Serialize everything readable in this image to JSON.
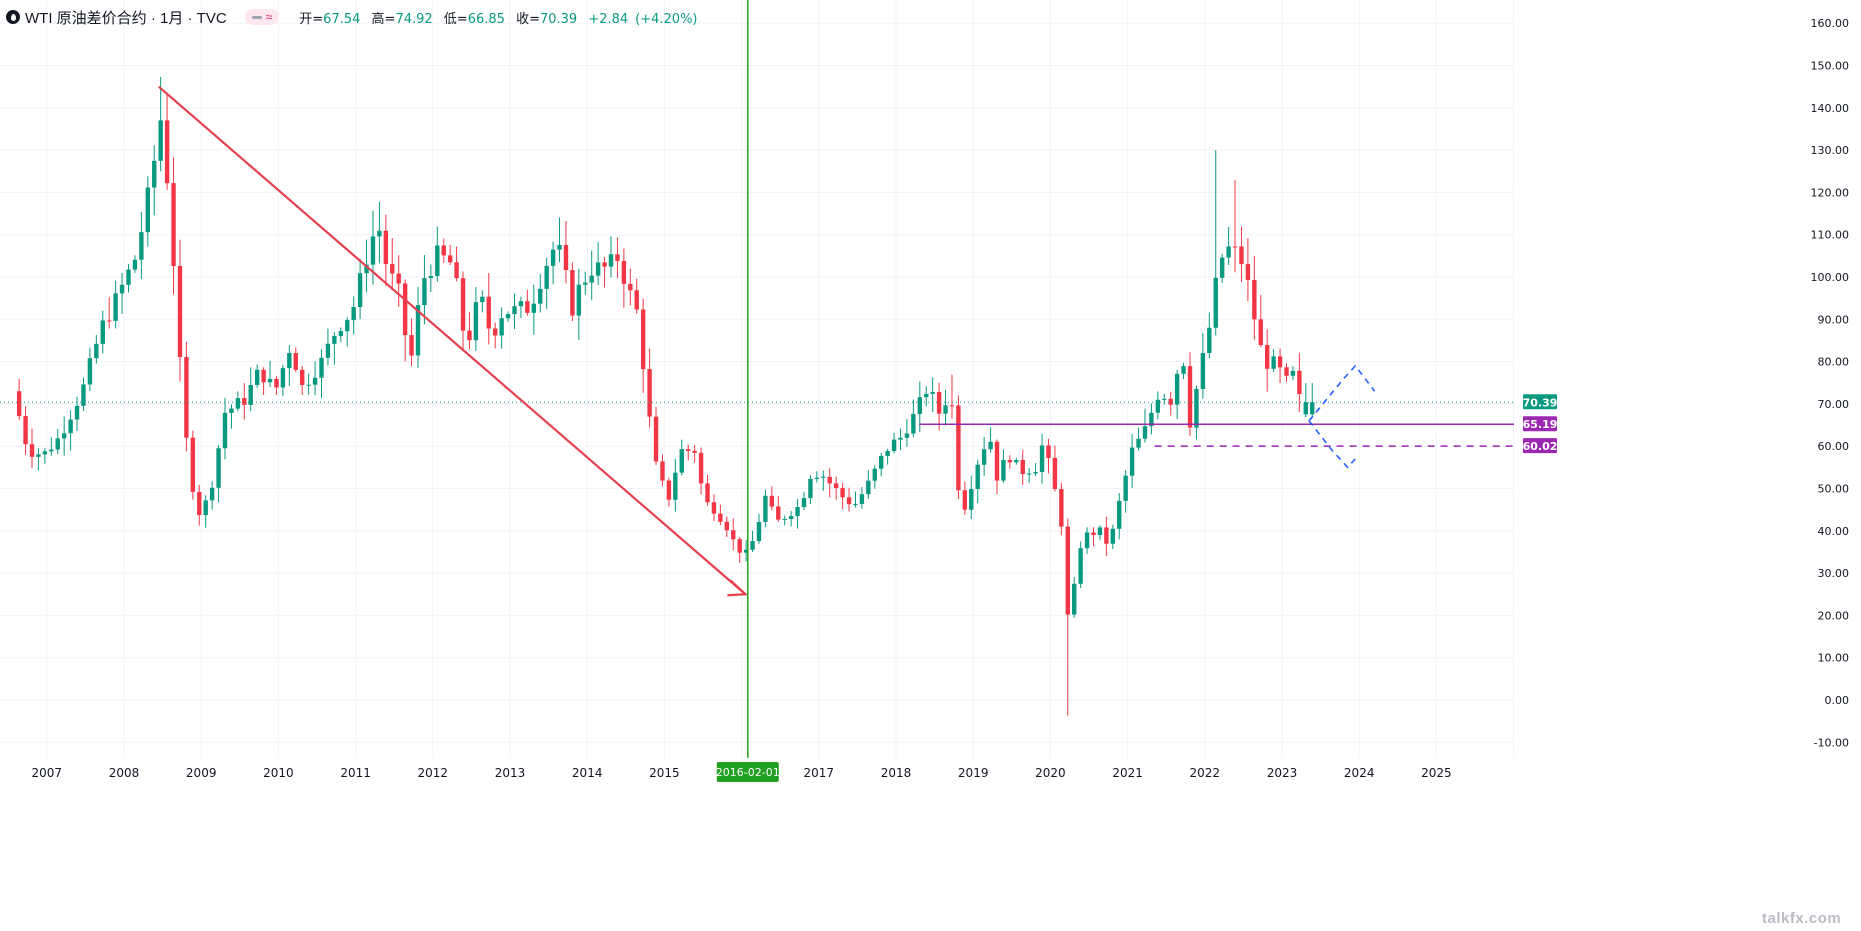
{
  "header": {
    "title": "WTI 原油差价合约 · 1月 · TVC",
    "open_label": "开=",
    "open": "67.54",
    "high_label": "高=",
    "high": "74.92",
    "low_label": "低=",
    "low": "66.85",
    "close_label": "收=",
    "close": "70.39",
    "change": "+2.84",
    "change_pct": "(+4.20%)",
    "pill_glyph": "≈"
  },
  "watermark": "talkfx.com",
  "colors": {
    "up": "#089981",
    "down": "#f23645",
    "trend": "#e5404d",
    "vline": "#22a022",
    "level": "#9c27b0",
    "projection": "#2962ff",
    "last_price": "#089981",
    "grid": "#f0f3fa"
  },
  "chart_data": {
    "type": "candlestick",
    "title": "WTI 原油差价合约 · 1月 · TVC",
    "interval": "monthly",
    "ylim": [
      -10,
      160
    ],
    "xlim": [
      2006.55,
      2026.1
    ],
    "y_ticks": [
      -10,
      0,
      10,
      20,
      30,
      40,
      50,
      60,
      70,
      80,
      90,
      100,
      110,
      120,
      130,
      140,
      150,
      160
    ],
    "y_tick_labels": [
      "-10.00",
      "0.00",
      "10.00",
      "20.00",
      "30.00",
      "40.00",
      "50.00",
      "60.00",
      "70.00",
      "80.00",
      "90.00",
      "100.00",
      "110.00",
      "120.00",
      "130.00",
      "140.00",
      "150.00",
      "160.00"
    ],
    "x_ticks": [
      2007,
      2008,
      2009,
      2010,
      2011,
      2012,
      2013,
      2014,
      2015,
      2017,
      2018,
      2019,
      2020,
      2021,
      2022,
      2023,
      2024,
      2025
    ],
    "x_tick_labels": [
      "2007",
      "2008",
      "2009",
      "2010",
      "2011",
      "2012",
      "2013",
      "2014",
      "2015",
      "2017",
      "2018",
      "2019",
      "2020",
      "2021",
      "2022",
      "2023",
      "2024",
      "2025"
    ],
    "crosshair_date": "2016-02-01",
    "crosshair_x": 2016.08,
    "price_path": [
      [
        2006.6,
        73
      ],
      [
        2006.8,
        59
      ],
      [
        2007.0,
        58
      ],
      [
        2007.2,
        62
      ],
      [
        2007.5,
        73
      ],
      [
        2007.75,
        88
      ],
      [
        2007.95,
        95
      ],
      [
        2008.2,
        105
      ],
      [
        2008.42,
        125
      ],
      [
        2008.5,
        140
      ],
      [
        2008.6,
        124
      ],
      [
        2008.7,
        100
      ],
      [
        2008.8,
        68
      ],
      [
        2008.9,
        54
      ],
      [
        2009.0,
        44
      ],
      [
        2009.15,
        48
      ],
      [
        2009.35,
        68
      ],
      [
        2009.6,
        71
      ],
      [
        2009.8,
        78
      ],
      [
        2010.0,
        73
      ],
      [
        2010.2,
        84
      ],
      [
        2010.35,
        74
      ],
      [
        2010.6,
        80
      ],
      [
        2010.8,
        88
      ],
      [
        2011.0,
        92
      ],
      [
        2011.2,
        106
      ],
      [
        2011.33,
        113
      ],
      [
        2011.45,
        102
      ],
      [
        2011.6,
        96
      ],
      [
        2011.75,
        79
      ],
      [
        2011.9,
        99
      ],
      [
        2012.1,
        105
      ],
      [
        2012.3,
        103
      ],
      [
        2012.45,
        86
      ],
      [
        2012.5,
        85
      ],
      [
        2012.65,
        96
      ],
      [
        2012.8,
        86
      ],
      [
        2012.95,
        92
      ],
      [
        2013.1,
        92
      ],
      [
        2013.3,
        93
      ],
      [
        2013.55,
        105
      ],
      [
        2013.65,
        108
      ],
      [
        2013.85,
        93
      ],
      [
        2013.95,
        98
      ],
      [
        2014.1,
        102
      ],
      [
        2014.3,
        102
      ],
      [
        2014.45,
        105
      ],
      [
        2014.55,
        98
      ],
      [
        2014.7,
        91
      ],
      [
        2014.85,
        66
      ],
      [
        2014.95,
        53
      ],
      [
        2015.1,
        48
      ],
      [
        2015.25,
        59
      ],
      [
        2015.45,
        59
      ],
      [
        2015.55,
        47
      ],
      [
        2015.7,
        45
      ],
      [
        2015.85,
        41
      ],
      [
        2015.95,
        37
      ],
      [
        2016.08,
        34
      ],
      [
        2016.2,
        38
      ],
      [
        2016.35,
        48
      ],
      [
        2016.5,
        42
      ],
      [
        2016.65,
        44
      ],
      [
        2016.8,
        46
      ],
      [
        2016.95,
        54
      ],
      [
        2017.1,
        53
      ],
      [
        2017.35,
        48
      ],
      [
        2017.5,
        46
      ],
      [
        2017.65,
        50
      ],
      [
        2017.85,
        57
      ],
      [
        2017.95,
        60
      ],
      [
        2018.1,
        62
      ],
      [
        2018.3,
        68
      ],
      [
        2018.45,
        74
      ],
      [
        2018.6,
        68
      ],
      [
        2018.75,
        73
      ],
      [
        2018.85,
        51
      ],
      [
        2018.95,
        45
      ],
      [
        2019.05,
        54
      ],
      [
        2019.25,
        63
      ],
      [
        2019.35,
        53
      ],
      [
        2019.5,
        58
      ],
      [
        2019.65,
        54
      ],
      [
        2019.85,
        55
      ],
      [
        2019.95,
        61
      ],
      [
        2020.08,
        51
      ],
      [
        2020.18,
        43
      ],
      [
        2020.25,
        20
      ],
      [
        2020.3,
        19
      ],
      [
        2020.4,
        35
      ],
      [
        2020.5,
        39
      ],
      [
        2020.7,
        40
      ],
      [
        2020.8,
        36
      ],
      [
        2020.95,
        48
      ],
      [
        2021.1,
        59
      ],
      [
        2021.25,
        63
      ],
      [
        2021.45,
        73
      ],
      [
        2021.6,
        71
      ],
      [
        2021.75,
        83
      ],
      [
        2021.85,
        66
      ],
      [
        2021.95,
        75
      ],
      [
        2022.1,
        88
      ],
      [
        2022.2,
        100
      ],
      [
        2022.3,
        107
      ],
      [
        2022.4,
        106
      ],
      [
        2022.5,
        105
      ],
      [
        2022.6,
        98
      ],
      [
        2022.7,
        89
      ],
      [
        2022.8,
        80
      ],
      [
        2022.9,
        80
      ],
      [
        2023.0,
        78
      ],
      [
        2023.1,
        75
      ],
      [
        2023.2,
        77
      ],
      [
        2023.3,
        68
      ],
      [
        2023.35,
        70.39
      ]
    ],
    "last_close": 70.39,
    "price_labels": [
      {
        "value": 70.39,
        "text": "70.39",
        "role": "last price"
      },
      {
        "value": 65.19,
        "text": "65.19",
        "role": "support level"
      },
      {
        "value": 60.02,
        "text": "60.02",
        "role": "support level (dashed)"
      }
    ],
    "annotations": {
      "trend_arrow": {
        "from": [
          2008.45,
          145
        ],
        "to": [
          2016.05,
          25
        ],
        "style": "solid red arrow"
      },
      "vertical_line": {
        "x": 2016.08,
        "style": "solid green"
      },
      "level_lines": [
        {
          "value": 65.19,
          "from_x": 2018.3,
          "style": "solid purple"
        },
        {
          "value": 60.02,
          "from_x": 2021.35,
          "style": "dashed purple"
        }
      ],
      "projection_up": [
        [
          2023.35,
          66
        ],
        [
          2023.8,
          76
        ],
        [
          2023.95,
          79
        ],
        [
          2024.2,
          73
        ]
      ],
      "projection_down": [
        [
          2023.35,
          66
        ],
        [
          2023.65,
          59
        ],
        [
          2023.85,
          55
        ],
        [
          2023.95,
          57
        ]
      ]
    }
  }
}
